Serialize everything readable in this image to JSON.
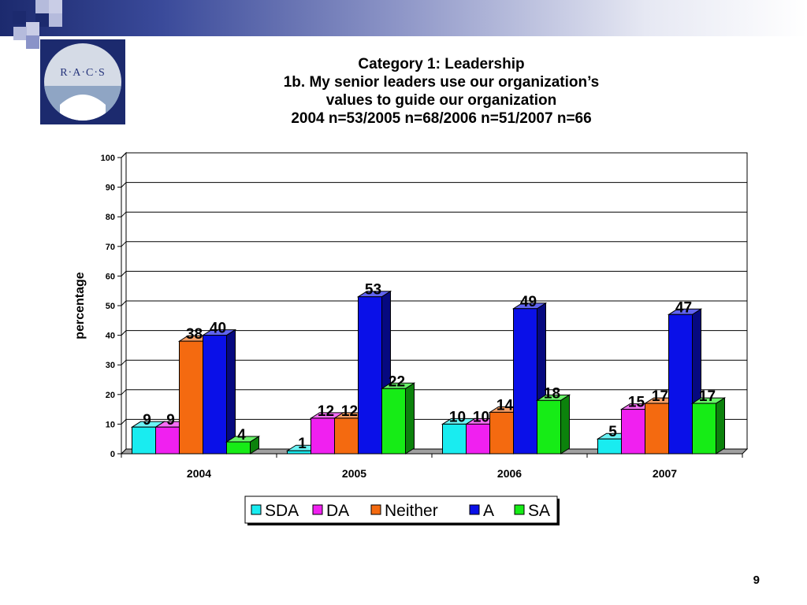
{
  "title_lines": [
    "Category 1: Leadership",
    "1b. My senior leaders use our organization’s",
    "values to guide our organization",
    "2004 n=53/2005 n=68/2006 n=51/2007 n=66"
  ],
  "logo": {
    "text": "R·A·C·S"
  },
  "page_number": "9",
  "colors": {
    "SDA": "#19ecf0",
    "DA": "#f020f0",
    "Neither": "#f46a10",
    "A": "#0a10e8",
    "SA": "#16ec16"
  },
  "chart_data": {
    "type": "bar",
    "categories": [
      "2004",
      "2005",
      "2006",
      "2007"
    ],
    "series": [
      {
        "name": "SDA",
        "values": [
          9,
          1,
          10,
          5
        ]
      },
      {
        "name": "DA",
        "values": [
          9,
          12,
          10,
          15
        ]
      },
      {
        "name": "Neither",
        "values": [
          38,
          12,
          14,
          17
        ]
      },
      {
        "name": "A",
        "values": [
          40,
          53,
          49,
          47
        ]
      },
      {
        "name": "SA",
        "values": [
          4,
          22,
          18,
          17
        ]
      }
    ],
    "xlabel": "",
    "ylabel": "percentage",
    "ylim": [
      0,
      100
    ],
    "yticks": [
      0,
      10,
      20,
      30,
      40,
      50,
      60,
      70,
      80,
      90,
      100
    ],
    "grid": true,
    "legend": "bottom",
    "three_d": true
  }
}
